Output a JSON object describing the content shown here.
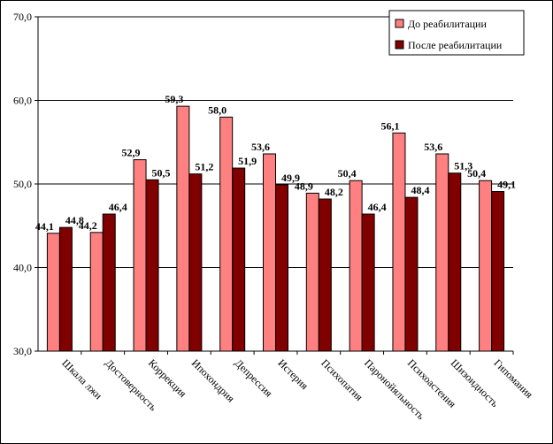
{
  "chart_data": {
    "type": "bar",
    "title": "",
    "xlabel": "",
    "ylabel": "",
    "ylim": [
      30,
      70
    ],
    "yticks": [
      "30,0",
      "40,0",
      "50,0",
      "60,0",
      "70,0"
    ],
    "grid": true,
    "legend_position": "top-right",
    "categories": [
      "Шкала лжи",
      "Достоверность",
      "Коррекция",
      "Ипохондрия",
      "Депрессия",
      "Истерия",
      "Психопатия",
      "Паронойяльность",
      "Психоастения",
      "Шизоидность",
      "Гипомания"
    ],
    "series": [
      {
        "name": "До реабилитации",
        "color": "#ff8080",
        "values": [
          44.1,
          44.2,
          52.9,
          59.3,
          58.0,
          53.6,
          48.9,
          50.4,
          56.1,
          53.6,
          50.4
        ],
        "labels": [
          "44,1",
          "44,2",
          "52,9",
          "59,3",
          "58,0",
          "53,6",
          "48,9",
          "50,4",
          "56,1",
          "53,6",
          "50,4"
        ]
      },
      {
        "name": "После реабилитации",
        "color": "#800000",
        "values": [
          44.8,
          46.4,
          50.5,
          51.2,
          51.9,
          49.9,
          48.2,
          46.4,
          48.4,
          51.3,
          49.1
        ],
        "labels": [
          "44,8",
          "46,4",
          "50,5",
          "51,2",
          "51,9",
          "49,9",
          "48,2",
          "46,4",
          "48,4",
          "51,3",
          "49,1"
        ]
      }
    ]
  }
}
